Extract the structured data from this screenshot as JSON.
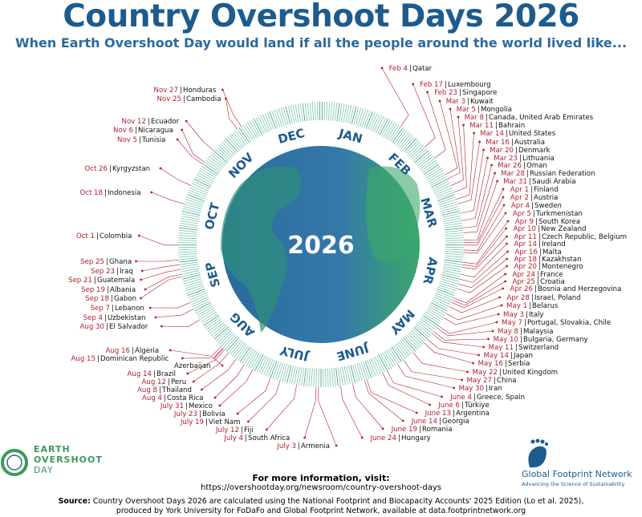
{
  "header": {
    "title": "Country Overshoot Days 2026",
    "subtitle": "When Earth Overshoot Day would land if all the people around the world lived like..."
  },
  "globe": {
    "year": "2026",
    "colors": {
      "ocean": "#2a6a9e",
      "land": "#3aa86b",
      "ticks": "#7cc3b3",
      "leader": "#b3202a",
      "month": "#1d5b8d"
    }
  },
  "months": [
    "JAN",
    "FEB",
    "MAR",
    "APR",
    "MAY",
    "JUNE",
    "JULY",
    "AUG",
    "SEP",
    "OCT",
    "NOV",
    "DEC"
  ],
  "entries": [
    {
      "date": "Nov 27",
      "country": "Honduras"
    },
    {
      "date": "Nov 25",
      "country": "Cambodia"
    },
    {
      "date": "Nov 12",
      "country": "Ecuador"
    },
    {
      "date": "Nov 6",
      "country": "Nicaragua"
    },
    {
      "date": "Nov 5",
      "country": "Tunisia"
    },
    {
      "date": "Oct 26",
      "country": "Kyrgyzstan"
    },
    {
      "date": "Oct 18",
      "country": "Indonesia"
    },
    {
      "date": "Oct 1",
      "country": "Colombia"
    },
    {
      "date": "Sep 25",
      "country": "Ghana"
    },
    {
      "date": "Sep 23",
      "country": "Iraq"
    },
    {
      "date": "Sep 21",
      "country": "Guatemala"
    },
    {
      "date": "Sep 19",
      "country": "Albania"
    },
    {
      "date": "Sep 18",
      "country": "Gabon"
    },
    {
      "date": "Sep 7",
      "country": "Lebanon"
    },
    {
      "date": "Sep 4",
      "country": "Uzbekistan"
    },
    {
      "date": "Aug 30",
      "country": "El Salvador"
    },
    {
      "date": "Aug 16",
      "country": "Algeria"
    },
    {
      "date": "Aug 15",
      "country": "Dominican Republic"
    },
    {
      "date": "",
      "country": "Azerbaijan"
    },
    {
      "date": "Aug 14",
      "country": "Brazil"
    },
    {
      "date": "Aug 12",
      "country": "Peru"
    },
    {
      "date": "Aug 8",
      "country": "Thailand"
    },
    {
      "date": "Aug 4",
      "country": "Costa Rica"
    },
    {
      "date": "July 31",
      "country": "Mexico"
    },
    {
      "date": "July 23",
      "country": "Bolivia"
    },
    {
      "date": "July 19",
      "country": "Viet Nam"
    },
    {
      "date": "July 12",
      "country": "Fiji"
    },
    {
      "date": "July 4",
      "country": "South Africa"
    },
    {
      "date": "July 3",
      "country": "Armenia"
    },
    {
      "date": "Feb 4",
      "country": "Qatar"
    },
    {
      "date": "Feb 17",
      "country": "Luxembourg"
    },
    {
      "date": "Feb 23",
      "country": "Singapore"
    },
    {
      "date": "Mar 3",
      "country": "Kuwait"
    },
    {
      "date": "Mar 5",
      "country": "Mongolia"
    },
    {
      "date": "Mar 8",
      "country": "Canada, United Arab Emirates"
    },
    {
      "date": "Mar 11",
      "country": "Bahrain"
    },
    {
      "date": "Mar 14",
      "country": "United States"
    },
    {
      "date": "Mar 16",
      "country": "Australia"
    },
    {
      "date": "Mar 20",
      "country": "Denmark"
    },
    {
      "date": "Mar 23",
      "country": "Lithuania"
    },
    {
      "date": "Mar 26",
      "country": "Oman"
    },
    {
      "date": "Mar 28",
      "country": "Russian Federation"
    },
    {
      "date": "Mar 31",
      "country": "Saudi Arabia"
    },
    {
      "date": "Apr 1",
      "country": "Finland"
    },
    {
      "date": "Apr 2",
      "country": "Austria"
    },
    {
      "date": "Apr 4",
      "country": "Sweden"
    },
    {
      "date": "Apr 5",
      "country": "Turkmenistan"
    },
    {
      "date": "Apr 9",
      "country": "South Korea"
    },
    {
      "date": "Apr 10",
      "country": "New Zealand"
    },
    {
      "date": "Apr 11",
      "country": "Czech Republic, Belgium"
    },
    {
      "date": "Apr 14",
      "country": "Ireland"
    },
    {
      "date": "Apr 16",
      "country": "Malta"
    },
    {
      "date": "Apr 18",
      "country": "Kazakhstan"
    },
    {
      "date": "Apr 20",
      "country": "Montenegro"
    },
    {
      "date": "Apr 24",
      "country": "France"
    },
    {
      "date": "Apr 25",
      "country": "Croatia"
    },
    {
      "date": "Apr 26",
      "country": "Bosnia and Herzegovina"
    },
    {
      "date": "Apr 28",
      "country": "Israel, Poland"
    },
    {
      "date": "May 1",
      "country": "Belarus"
    },
    {
      "date": "May 3",
      "country": "Italy"
    },
    {
      "date": "May 7",
      "country": "Portugal, Slovakia, Chile"
    },
    {
      "date": "May 8",
      "country": "Malaysia"
    },
    {
      "date": "May 10",
      "country": "Bulgaria, Germany"
    },
    {
      "date": "May 11",
      "country": "Switzerland"
    },
    {
      "date": "May 14",
      "country": "Japan"
    },
    {
      "date": "May 16",
      "country": "Serbia"
    },
    {
      "date": "May 22",
      "country": "United Kingdom"
    },
    {
      "date": "May 27",
      "country": "China"
    },
    {
      "date": "May 30",
      "country": "Iran"
    },
    {
      "date": "June 4",
      "country": "Greece, Spain"
    },
    {
      "date": "June 6",
      "country": "Türkiye"
    },
    {
      "date": "June 13",
      "country": "Argentina"
    },
    {
      "date": "June 14",
      "country": "Georgia"
    },
    {
      "date": "June 19",
      "country": "Romania"
    },
    {
      "date": "June 24",
      "country": "Hungary"
    }
  ],
  "logos": {
    "eod": [
      "EARTH",
      "OVERSHOOT",
      "DAY"
    ],
    "gfn_name": "Global Footprint Network",
    "gfn_slogan": "Advancing the Science of Sustainability"
  },
  "footer": {
    "more": "For more information, visit:",
    "url": "https://overshootday.org/newsroom/country-overshoot-days",
    "source_label": "Source:",
    "source_line1": " Country Overshoot Days 2026 are calculated using the National Footprint and Biocapacity Accounts' 2025 Edition (Lo et al. 2025),",
    "source_line2": "produced by York University for FoDaFo and Global Footprint Network, available at data.footprintnetwork.org"
  }
}
